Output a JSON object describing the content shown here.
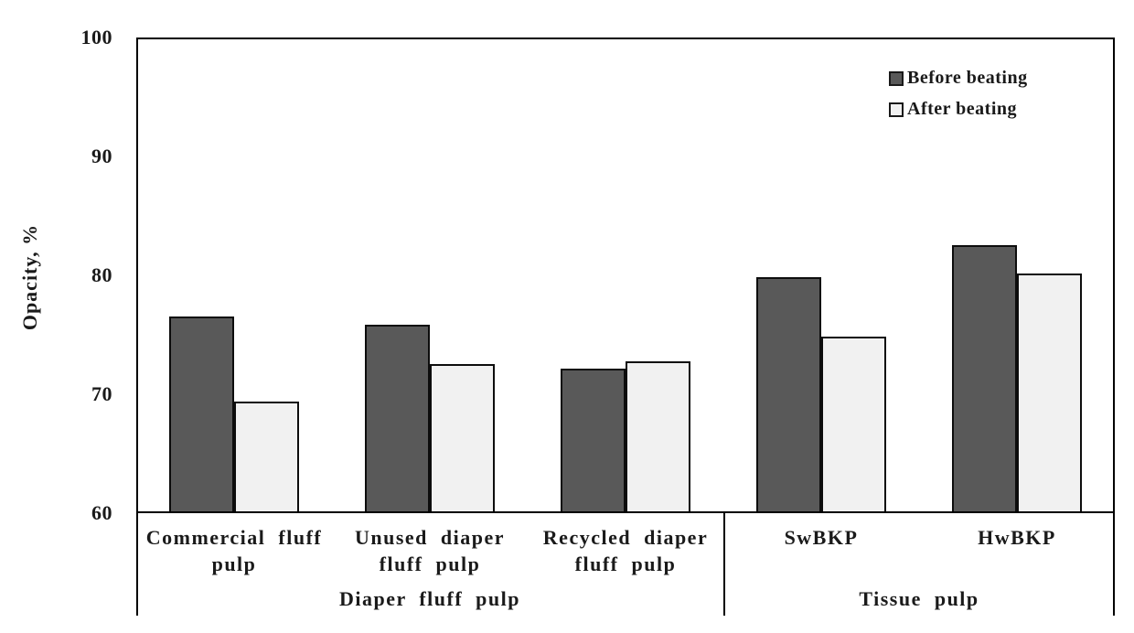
{
  "chart_data": {
    "type": "bar",
    "title": "",
    "ylabel": "Opacity, %",
    "xlabel": "",
    "ylim": [
      60,
      100
    ],
    "yticks": [
      100,
      90,
      80,
      70,
      60
    ],
    "grid": false,
    "legend_position": "top-right",
    "categories": [
      "Commercial fluff pulp",
      "Unused diaper fluff pulp",
      "Recycled diaper fluff pulp",
      "SwBKP",
      "HwBKP"
    ],
    "category_label_lines": [
      "Commercial fluff\npulp",
      "Unused diaper\nfluff pulp",
      "Recycled diaper\nfluff pulp",
      "SwBKP",
      "HwBKP"
    ],
    "category_groups": [
      {
        "label": "Diaper fluff pulp",
        "start_index": 0,
        "end_index": 3
      },
      {
        "label": "Tissue pulp",
        "start_index": 3,
        "end_index": 5
      }
    ],
    "series": [
      {
        "name": "Before beating",
        "color": "#595959",
        "values": [
          76.4,
          75.7,
          72.0,
          79.7,
          82.4
        ]
      },
      {
        "name": "After beating",
        "color": "#f1f1f1",
        "values": [
          69.2,
          72.4,
          72.6,
          74.7,
          80.0
        ]
      }
    ]
  },
  "colors": {
    "axis": "#000000",
    "text": "#1a1a1a",
    "background": "#ffffff",
    "before_bar": "#595959",
    "after_bar": "#f1f1f1"
  }
}
